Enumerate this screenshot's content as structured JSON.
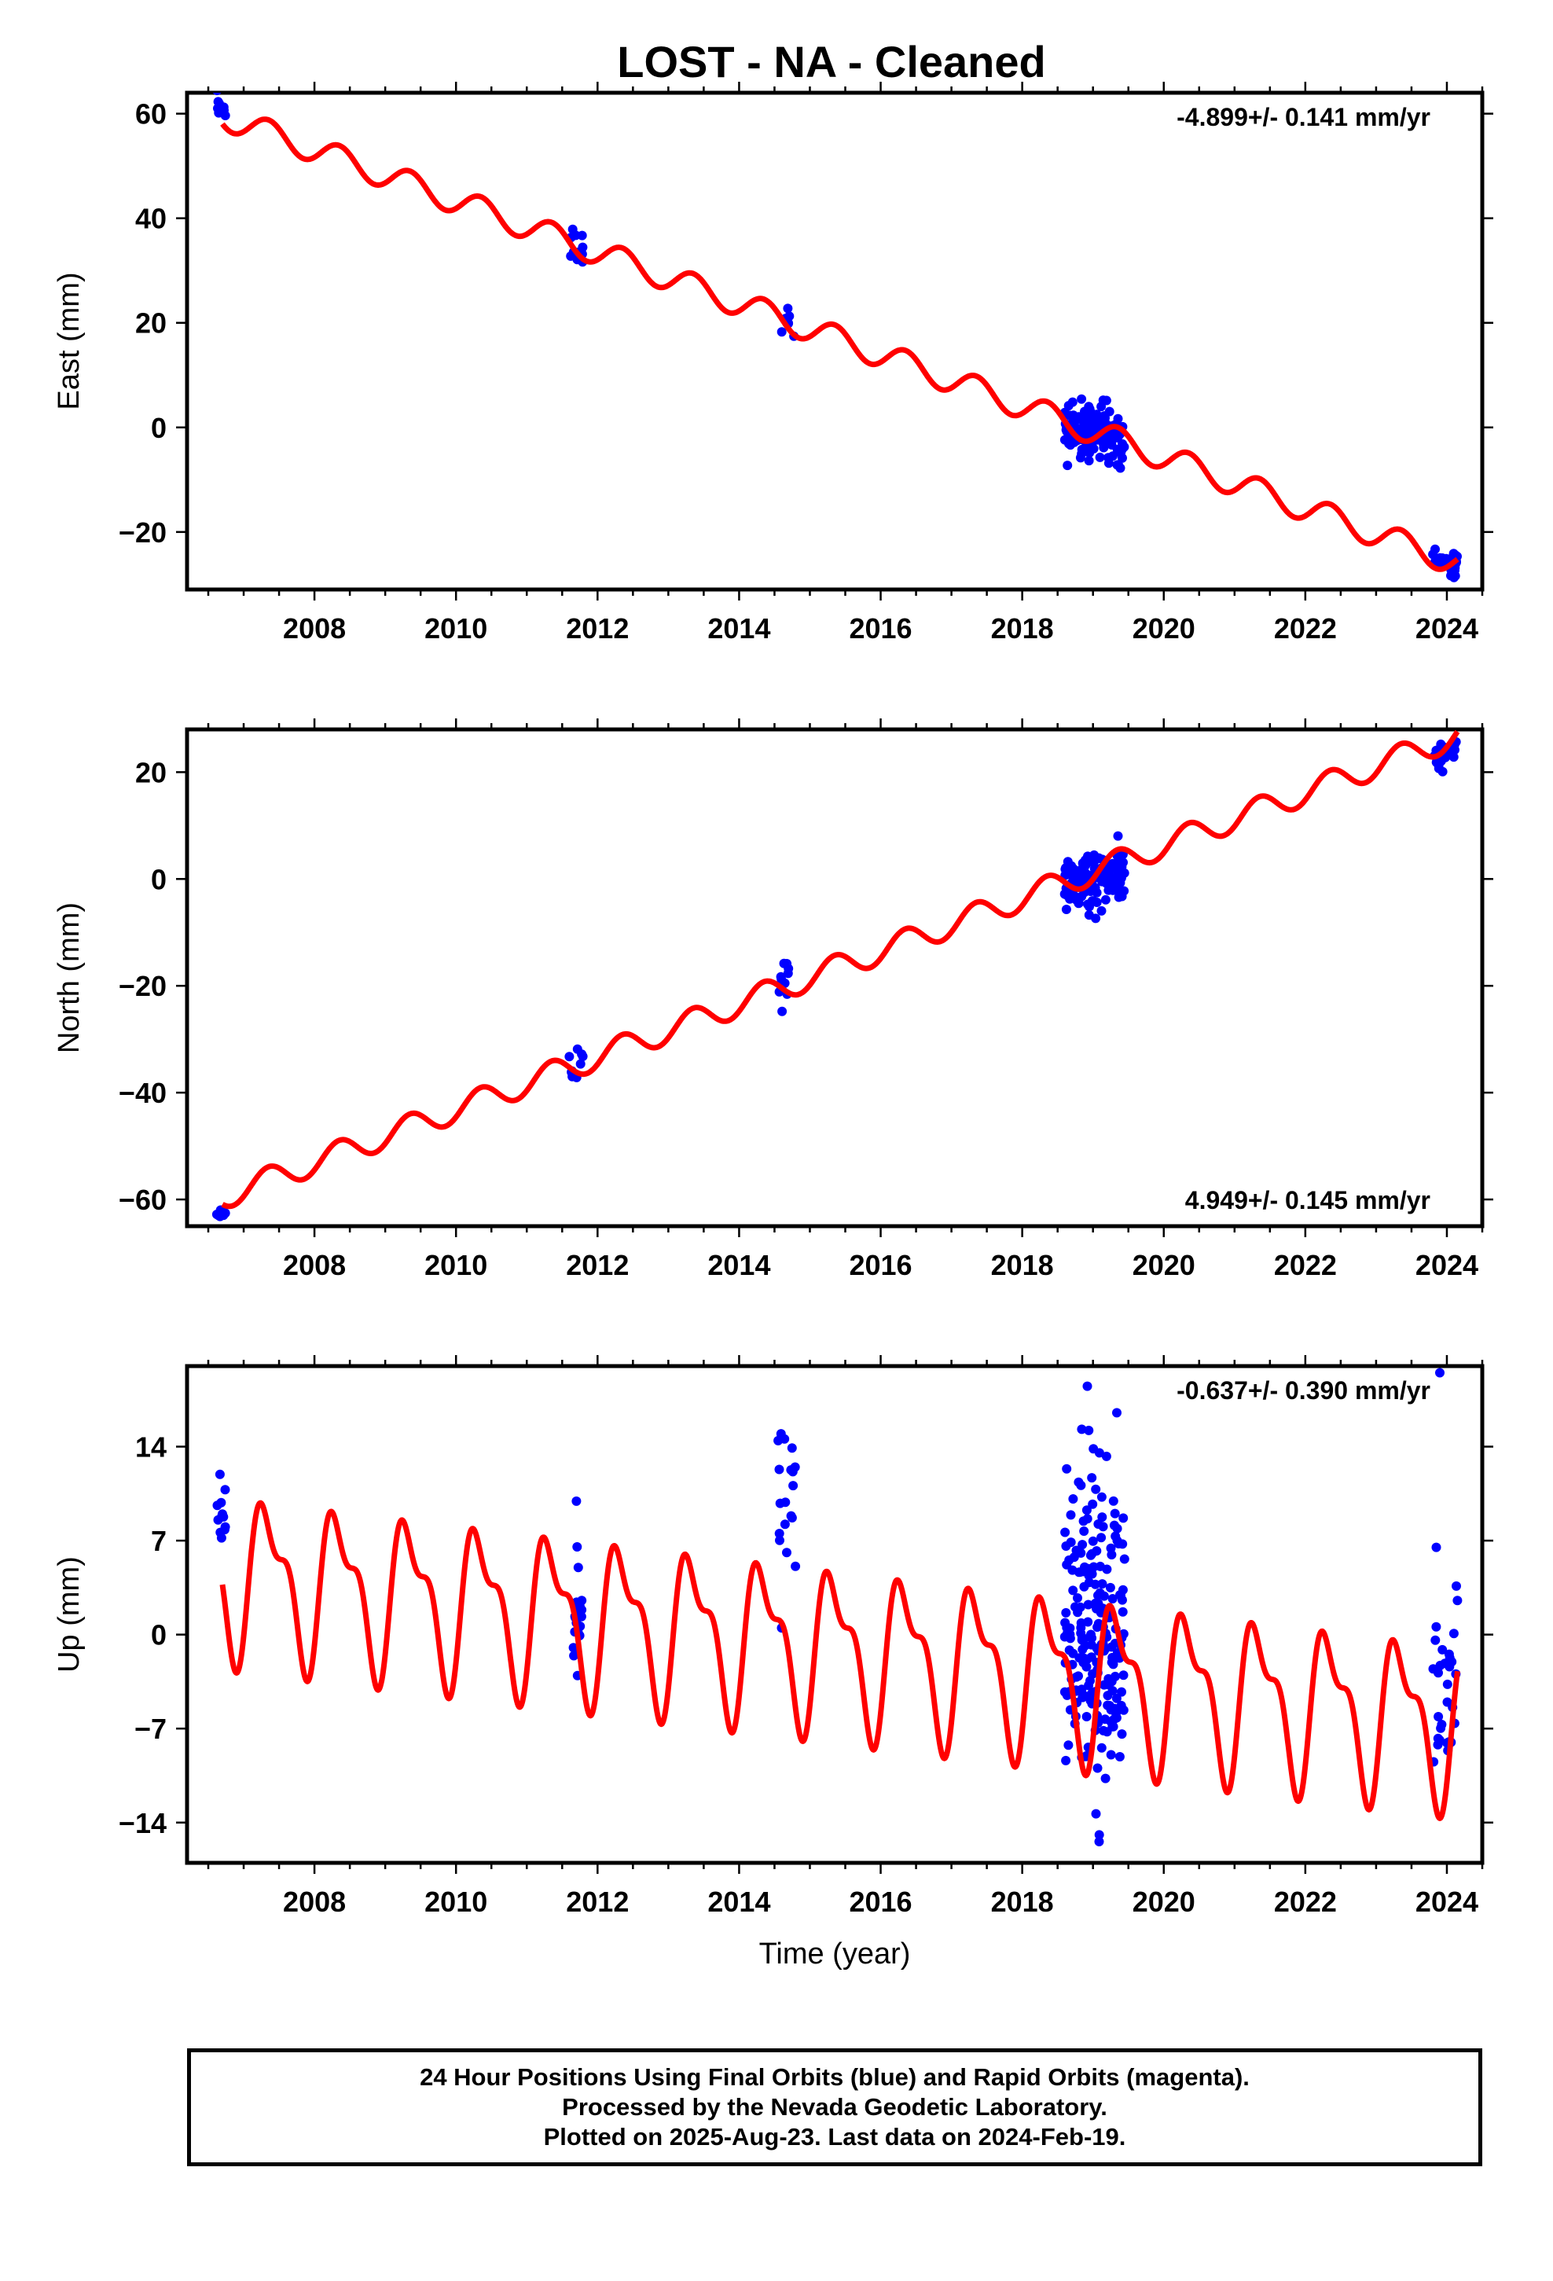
{
  "title": "LOST  - NA - Cleaned",
  "colors": {
    "data": "#0000ff",
    "model": "#ff0000",
    "axis": "#000000"
  },
  "x_axis": {
    "label": "Time (year)",
    "range": [
      2006.2,
      2024.5
    ],
    "ticks": [
      "2008",
      "2010",
      "2012",
      "2014",
      "2016",
      "2018",
      "2020",
      "2022",
      "2024"
    ]
  },
  "chart_data": [
    {
      "type": "scatter",
      "name": "east",
      "ylabel": "East (mm)",
      "ylim": [
        -31,
        64
      ],
      "yticks": [
        -20,
        0,
        20,
        40,
        60
      ],
      "ytick_labels": [
        "−20",
        "0",
        "20",
        "40",
        "60"
      ],
      "rate_text": "-4.899+/- 0.141 mm/yr",
      "rate_position": "top-right",
      "model": {
        "t0": 2006.7,
        "y0": 59.5,
        "rate": -4.899,
        "annual_amp": 2.5,
        "semiannual_amp": 0.0,
        "t_end": 2024.15
      },
      "clusters": [
        {
          "t": [
            2006.62,
            2006.75
          ],
          "center": 60,
          "spread": 1.5,
          "count": 10
        },
        {
          "t": [
            2011.6,
            2011.8
          ],
          "center": 34,
          "spread": 2.0,
          "count": 12
        },
        {
          "t": [
            2014.55,
            2014.8
          ],
          "center": 20.5,
          "spread": 1.8,
          "count": 8
        },
        {
          "t": [
            2018.6,
            2019.45
          ],
          "center": -1,
          "spread": 2.8,
          "count": 140
        },
        {
          "t": [
            2023.8,
            2024.15
          ],
          "center": -26,
          "spread": 1.6,
          "count": 30
        }
      ]
    },
    {
      "type": "scatter",
      "name": "north",
      "ylabel": "North (mm)",
      "ylim": [
        -65,
        28
      ],
      "yticks": [
        -60,
        -40,
        -20,
        0,
        20
      ],
      "ytick_labels": [
        "−60",
        "−40",
        "−20",
        "0",
        "20"
      ],
      "rate_text": "4.949+/- 0.145 mm/yr",
      "rate_position": "bottom-right",
      "model": {
        "t0": 2006.7,
        "y0": -59.5,
        "rate": 4.949,
        "annual_amp": 2.4,
        "semiannual_amp": 0.0,
        "t_end": 2024.15
      },
      "clusters": [
        {
          "t": [
            2006.62,
            2006.75
          ],
          "center": -62.5,
          "spread": 0.8,
          "count": 8
        },
        {
          "t": [
            2011.6,
            2011.8
          ],
          "center": -35,
          "spread": 1.6,
          "count": 10
        },
        {
          "t": [
            2014.55,
            2014.8
          ],
          "center": -18.5,
          "spread": 2.2,
          "count": 10
        },
        {
          "t": [
            2018.6,
            2019.45
          ],
          "center": 0,
          "spread": 2.6,
          "count": 140
        },
        {
          "t": [
            2023.8,
            2024.15
          ],
          "center": 23.5,
          "spread": 1.4,
          "count": 30
        }
      ]
    },
    {
      "type": "scatter",
      "name": "up",
      "ylabel": "Up (mm)",
      "ylim": [
        -17,
        20
      ],
      "yticks": [
        -14,
        -7,
        0,
        7,
        14
      ],
      "ytick_labels": [
        "−14",
        "−7",
        "0",
        "7",
        "14"
      ],
      "rate_text": "-0.637+/- 0.390 mm/yr",
      "rate_position": "top-right",
      "model": {
        "t0": 2006.7,
        "y0": 4.5,
        "rate": -0.637,
        "annual_amp": 5.2,
        "semiannual_amp": 2.4,
        "t_end": 2024.15
      },
      "clusters": [
        {
          "t": [
            2006.62,
            2006.75
          ],
          "center": 9,
          "spread": 2.0,
          "count": 12
        },
        {
          "t": [
            2011.65,
            2011.8
          ],
          "center": 1,
          "spread": 3.8,
          "count": 20
        },
        {
          "t": [
            2014.55,
            2014.8
          ],
          "center": 10,
          "spread": 2.6,
          "count": 18
        },
        {
          "t": [
            2018.6,
            2019.45
          ],
          "center": 0,
          "spread": 6.0,
          "count": 220
        },
        {
          "t": [
            2023.8,
            2024.15
          ],
          "center": -4,
          "spread": 3.0,
          "count": 30
        }
      ],
      "outliers": [
        {
          "t": 2018.92,
          "y": 18.5
        },
        {
          "t": 2023.9,
          "y": 19.5
        },
        {
          "t": 2014.6,
          "y": 0.5
        },
        {
          "t": 2023.85,
          "y": 6.5
        }
      ]
    }
  ],
  "caption": {
    "line1": "24 Hour Positions Using Final Orbits (blue) and Rapid Orbits (magenta).",
    "line2": "Processed by the Nevada Geodetic Laboratory.",
    "line3": "Plotted on 2025-Aug-23. Last data on 2024-Feb-19."
  }
}
